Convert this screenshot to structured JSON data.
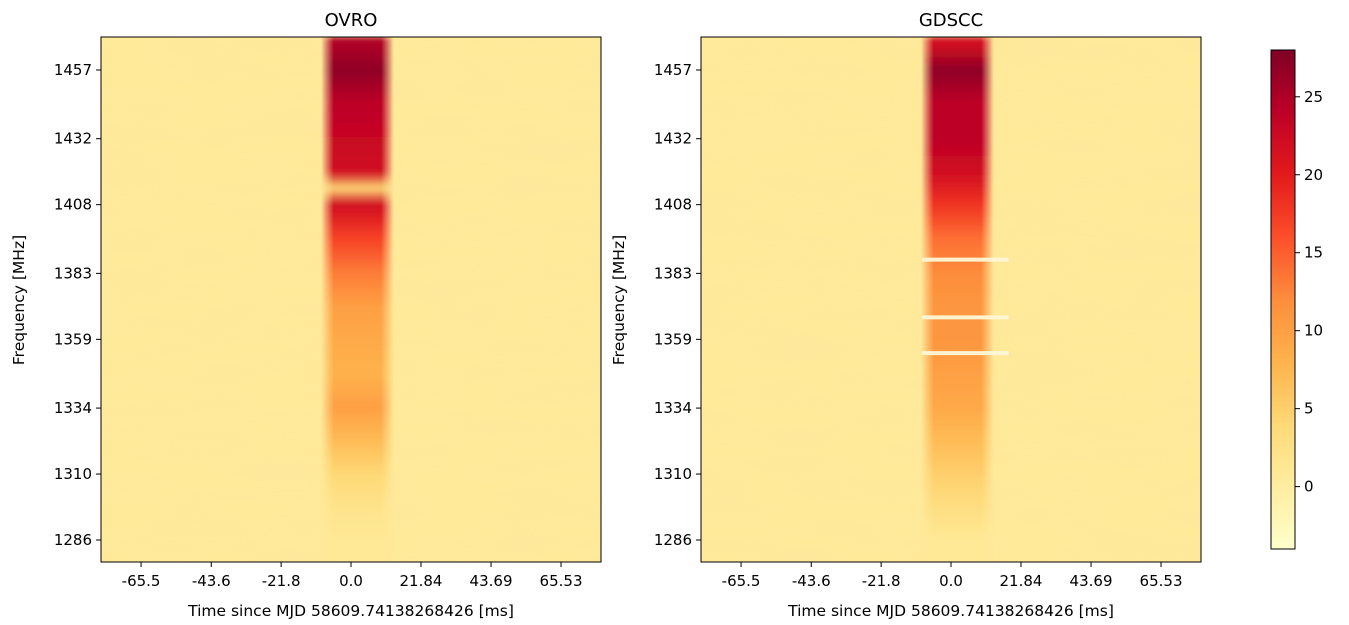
{
  "chart_data": [
    {
      "type": "heatmap",
      "title": "OVRO",
      "xlabel": "Time since MJD 58609.74138268426 [ms]",
      "ylabel": "Frequency [MHz]",
      "x_ticks": [
        "-65.5",
        "-43.6",
        "-21.8",
        "0.0",
        "21.84",
        "43.69",
        "65.53"
      ],
      "y_ticks": [
        "1457",
        "1432",
        "1408",
        "1383",
        "1359",
        "1334",
        "1310",
        "1286"
      ],
      "xlim": [
        -78,
        78
      ],
      "ylim": [
        1278,
        1469
      ],
      "pulse_time_ms": 2,
      "pulse_half_width_ms": 10,
      "profile": [
        {
          "freq": 1466,
          "intensity": 25
        },
        {
          "freq": 1457,
          "intensity": 27
        },
        {
          "freq": 1445,
          "intensity": 24
        },
        {
          "freq": 1432,
          "intensity": 23
        },
        {
          "freq": 1420,
          "intensity": 22
        },
        {
          "freq": 1414,
          "intensity": 4
        },
        {
          "freq": 1408,
          "intensity": 22
        },
        {
          "freq": 1396,
          "intensity": 17
        },
        {
          "freq": 1383,
          "intensity": 13
        },
        {
          "freq": 1371,
          "intensity": 10
        },
        {
          "freq": 1359,
          "intensity": 9
        },
        {
          "freq": 1347,
          "intensity": 8
        },
        {
          "freq": 1334,
          "intensity": 10
        },
        {
          "freq": 1322,
          "intensity": 7
        },
        {
          "freq": 1310,
          "intensity": 4
        },
        {
          "freq": 1298,
          "intensity": 2
        },
        {
          "freq": 1286,
          "intensity": 1
        },
        {
          "freq": 1278,
          "intensity": 1
        }
      ],
      "gaps_mhz": []
    },
    {
      "type": "heatmap",
      "title": "GDSCC",
      "xlabel": "Time since MJD 58609.74138268426 [ms]",
      "ylabel": "Frequency [MHz]",
      "x_ticks": [
        "-65.5",
        "-43.6",
        "-21.8",
        "0.0",
        "21.84",
        "43.69",
        "65.53"
      ],
      "y_ticks": [
        "1457",
        "1432",
        "1408",
        "1383",
        "1359",
        "1334",
        "1310",
        "1286"
      ],
      "xlim": [
        -78,
        78
      ],
      "ylim": [
        1278,
        1469
      ],
      "pulse_time_ms": 2,
      "pulse_half_width_ms": 10,
      "profile": [
        {
          "freq": 1466,
          "intensity": 22
        },
        {
          "freq": 1457,
          "intensity": 27
        },
        {
          "freq": 1445,
          "intensity": 24
        },
        {
          "freq": 1432,
          "intensity": 24
        },
        {
          "freq": 1420,
          "intensity": 22
        },
        {
          "freq": 1408,
          "intensity": 18
        },
        {
          "freq": 1396,
          "intensity": 14
        },
        {
          "freq": 1383,
          "intensity": 12
        },
        {
          "freq": 1371,
          "intensity": 11
        },
        {
          "freq": 1359,
          "intensity": 11
        },
        {
          "freq": 1347,
          "intensity": 10
        },
        {
          "freq": 1334,
          "intensity": 9
        },
        {
          "freq": 1322,
          "intensity": 7
        },
        {
          "freq": 1310,
          "intensity": 5
        },
        {
          "freq": 1298,
          "intensity": 3
        },
        {
          "freq": 1286,
          "intensity": 1
        },
        {
          "freq": 1278,
          "intensity": 1
        }
      ],
      "gaps_mhz": [
        1388,
        1367,
        1354
      ]
    }
  ],
  "colorbar": {
    "colormap": "YlOrRd",
    "vmin": -4,
    "vmax": 28,
    "ticks": [
      "0",
      "5",
      "10",
      "15",
      "20",
      "25"
    ],
    "stops": [
      "#ffffcc",
      "#ffeda0",
      "#fed976",
      "#feb24c",
      "#fd8d3c",
      "#fc4e2a",
      "#e31a1c",
      "#bd0026",
      "#800026"
    ]
  }
}
